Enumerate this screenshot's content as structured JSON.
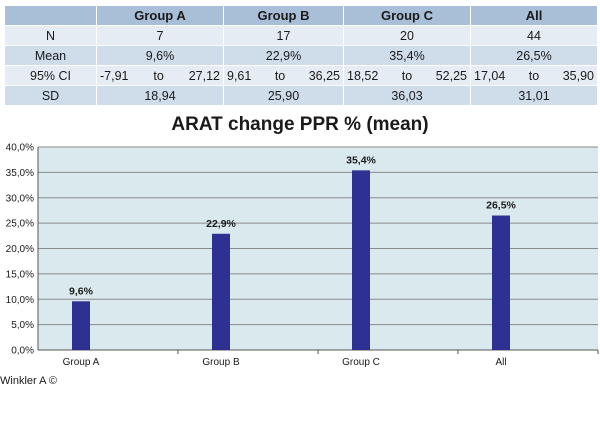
{
  "table": {
    "headers": [
      "Group A",
      "Group B",
      "Group C",
      "All"
    ],
    "rows": {
      "n": {
        "label": "N",
        "values": [
          "7",
          "17",
          "20",
          "44"
        ]
      },
      "mean": {
        "label": "Mean",
        "values": [
          "9,6%",
          "22,9%",
          "35,4%",
          "26,5%"
        ]
      },
      "ci": {
        "label": "95% CI",
        "to": "to",
        "values": [
          [
            "-7,91",
            "27,12"
          ],
          [
            "9,61",
            "36,25"
          ],
          [
            "18,52",
            "52,25"
          ],
          [
            "17,04",
            "35,90"
          ]
        ]
      },
      "sd": {
        "label": "SD",
        "values": [
          "18,94",
          "25,90",
          "36,03",
          "31,01"
        ]
      }
    }
  },
  "chart_data": {
    "type": "bar",
    "title": "ARAT change PPR % (mean)",
    "categories": [
      "Group A",
      "Group B",
      "Group C",
      "All"
    ],
    "values": [
      9.6,
      22.9,
      35.4,
      26.5
    ],
    "data_labels": [
      "9,6%",
      "22,9%",
      "35,4%",
      "26,5%"
    ],
    "ylim": [
      0,
      40
    ],
    "yticks": [
      0,
      5,
      10,
      15,
      20,
      25,
      30,
      35,
      40
    ],
    "ytick_labels": [
      "0,0%",
      "5,0%",
      "10,0%",
      "15,0%",
      "20,0%",
      "25,0%",
      "30,0%",
      "35,0%",
      "40,0%"
    ],
    "xlabel": "",
    "ylabel": "",
    "grid": true,
    "legend": "none",
    "colors": {
      "bar": "#2e3192",
      "plot_bg": "#d9e9ee",
      "grid": "#8a8a8a"
    }
  },
  "credit": "Winkler A ©"
}
